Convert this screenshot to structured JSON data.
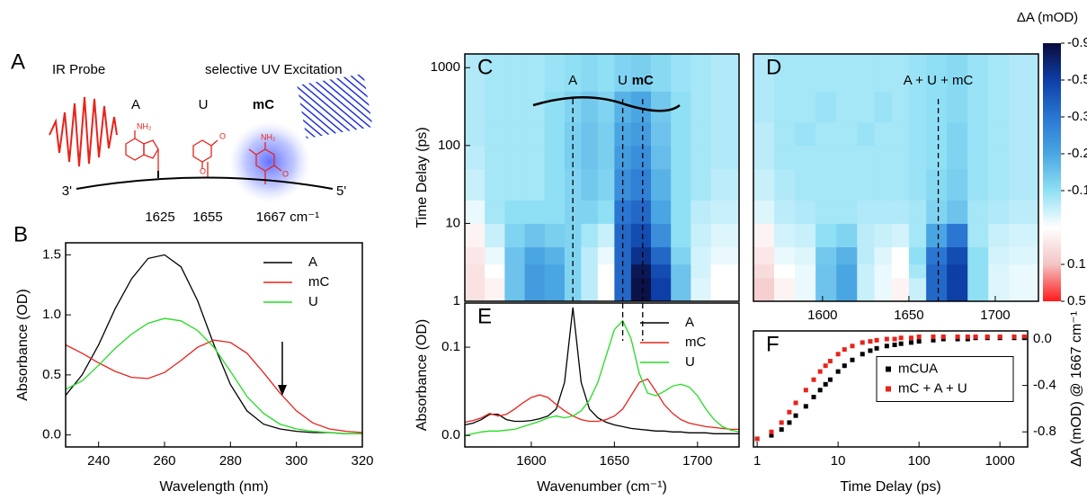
{
  "diagram": {
    "panel": "A",
    "probe": "IR Probe",
    "excitation": "selective UV Excitation",
    "bases": [
      "A",
      "U",
      "mC"
    ],
    "atoms": [
      "NH₂",
      "O",
      "O",
      "NH₂",
      "O"
    ],
    "ends": [
      "3'",
      "5'"
    ],
    "frequencies": [
      "1625",
      "1655",
      "1667 cm⁻¹"
    ]
  },
  "chart_data": [
    {
      "type": "line",
      "panel": "B",
      "xlabel": "Wavelength (nm)",
      "ylabel": "Absorbance (OD)",
      "xlim": [
        230,
        320
      ],
      "ylim": [
        -0.1,
        1.6
      ],
      "xticks": [
        240,
        260,
        280,
        300,
        320
      ],
      "yticks": [
        {
          "value": 0,
          "label": "0.0"
        },
        0.5,
        {
          "value": 1,
          "label": "1.0"
        },
        1.5
      ],
      "legend": "upper right",
      "x": [
        230,
        235,
        240,
        245,
        250,
        255,
        260,
        265,
        270,
        275,
        280,
        285,
        290,
        295,
        300,
        305,
        310,
        315,
        320
      ],
      "series": [
        {
          "name": "A",
          "color": "#000000",
          "values": [
            0.33,
            0.5,
            0.75,
            1.05,
            1.3,
            1.47,
            1.5,
            1.4,
            1.12,
            0.75,
            0.42,
            0.2,
            0.09,
            0.05,
            0.03,
            0.02,
            0.02,
            0.01,
            0.01
          ]
        },
        {
          "name": "mC",
          "color": "#e8231b",
          "values": [
            0.75,
            0.68,
            0.6,
            0.53,
            0.48,
            0.47,
            0.52,
            0.62,
            0.73,
            0.79,
            0.77,
            0.68,
            0.52,
            0.35,
            0.2,
            0.1,
            0.05,
            0.03,
            0.02
          ]
        },
        {
          "name": "U",
          "color": "#22dd22",
          "values": [
            0.38,
            0.45,
            0.58,
            0.72,
            0.84,
            0.93,
            0.97,
            0.95,
            0.87,
            0.73,
            0.53,
            0.32,
            0.18,
            0.09,
            0.05,
            0.03,
            0.02,
            0.01,
            0.01
          ]
        }
      ]
    },
    {
      "type": "heatmap",
      "panel": "C",
      "ylabel": "Time Delay (ps)",
      "xlim": [
        1560,
        1725
      ],
      "ylim": [
        1,
        1500
      ],
      "ylog": true,
      "yticks": [
        1,
        10,
        100,
        1000
      ],
      "xbins": [
        1560,
        1572,
        1584,
        1596,
        1608,
        1620,
        1630,
        1640,
        1650,
        1660,
        1672,
        1684,
        1696,
        1708,
        1725
      ],
      "ybins": [
        1,
        2,
        3,
        5,
        10,
        20,
        50,
        100,
        200,
        500,
        1500
      ],
      "vlines": [
        {
          "value": 1625,
          "label": "A"
        },
        {
          "value": 1655,
          "label": "U"
        },
        {
          "value": 1667,
          "label": "mC"
        }
      ],
      "colorscale": [
        {
          "value": -0.9,
          "color": "#0b0b3b"
        },
        {
          "value": -0.5,
          "color": "#0d3fa6"
        },
        {
          "value": -0.3,
          "color": "#2a76d2"
        },
        {
          "value": -0.2,
          "color": "#4aa6e2"
        },
        {
          "value": -0.1,
          "color": "#8fe0f5"
        },
        {
          "value": 0,
          "color": "#ffffff"
        },
        {
          "value": 0.1,
          "color": "#f4c4c4"
        },
        {
          "value": 0.5,
          "color": "#ff1a1a"
        }
      ],
      "z": [
        [
          0.05,
          0.02,
          -0.15,
          -0.22,
          -0.2,
          -0.12,
          -0.06,
          0.0,
          -0.35,
          -0.85,
          -0.5,
          -0.15,
          -0.03,
          0.0
        ],
        [
          0.05,
          0.0,
          -0.15,
          -0.22,
          -0.2,
          -0.12,
          -0.06,
          0.0,
          -0.35,
          -0.8,
          -0.45,
          -0.15,
          -0.04,
          0.0
        ],
        [
          0.04,
          -0.02,
          -0.15,
          -0.2,
          -0.18,
          -0.12,
          -0.06,
          -0.02,
          -0.35,
          -0.6,
          -0.35,
          -0.12,
          -0.04,
          -0.02
        ],
        [
          0.02,
          -0.05,
          -0.12,
          -0.15,
          -0.13,
          -0.12,
          -0.08,
          -0.05,
          -0.35,
          -0.45,
          -0.25,
          -0.1,
          -0.05,
          -0.03
        ],
        [
          -0.02,
          -0.08,
          -0.1,
          -0.1,
          -0.1,
          -0.12,
          -0.12,
          -0.1,
          -0.3,
          -0.35,
          -0.2,
          -0.1,
          -0.06,
          -0.05
        ],
        [
          -0.05,
          -0.08,
          -0.08,
          -0.08,
          -0.1,
          -0.12,
          -0.14,
          -0.12,
          -0.25,
          -0.28,
          -0.18,
          -0.1,
          -0.08,
          -0.06
        ],
        [
          -0.06,
          -0.08,
          -0.08,
          -0.08,
          -0.1,
          -0.13,
          -0.15,
          -0.13,
          -0.22,
          -0.25,
          -0.16,
          -0.1,
          -0.08,
          -0.07
        ],
        [
          -0.07,
          -0.08,
          -0.08,
          -0.08,
          -0.1,
          -0.13,
          -0.15,
          -0.13,
          -0.2,
          -0.22,
          -0.15,
          -0.1,
          -0.08,
          -0.07
        ],
        [
          -0.07,
          -0.08,
          -0.08,
          -0.08,
          -0.1,
          -0.12,
          -0.14,
          -0.12,
          -0.18,
          -0.2,
          -0.14,
          -0.1,
          -0.08,
          -0.07
        ],
        [
          -0.07,
          -0.08,
          -0.08,
          -0.08,
          -0.09,
          -0.1,
          -0.11,
          -0.1,
          -0.12,
          -0.13,
          -0.11,
          -0.09,
          -0.08,
          -0.07
        ]
      ]
    },
    {
      "type": "heatmap",
      "panel": "D",
      "xlim": [
        1560,
        1725
      ],
      "ylim": [
        1,
        1500
      ],
      "ylog": true,
      "xticks": [
        1600,
        1650,
        1700
      ],
      "xbins": [
        1560,
        1572,
        1584,
        1596,
        1608,
        1620,
        1630,
        1640,
        1650,
        1660,
        1672,
        1684,
        1696,
        1708,
        1725
      ],
      "ybins": [
        1,
        2,
        3,
        5,
        10,
        20,
        50,
        100,
        200,
        500,
        1500
      ],
      "vlines": [
        {
          "value": 1667,
          "label": "A + U + mC"
        }
      ],
      "colorscale": [
        {
          "value": -0.9,
          "color": "#0b0b3b"
        },
        {
          "value": -0.5,
          "color": "#0d3fa6"
        },
        {
          "value": -0.3,
          "color": "#2a76d2"
        },
        {
          "value": -0.2,
          "color": "#4aa6e2"
        },
        {
          "value": -0.1,
          "color": "#8fe0f5"
        },
        {
          "value": 0,
          "color": "#ffffff"
        },
        {
          "value": 0.1,
          "color": "#f4c4c4"
        },
        {
          "value": 0.5,
          "color": "#ff1a1a"
        }
      ],
      "colorbar": {
        "label": "ΔA (mOD)",
        "ticks": [
          -0.9,
          -0.5,
          -0.3,
          -0.2,
          -0.1,
          0.1,
          0.5
        ]
      },
      "z": [
        [
          0.08,
          0.02,
          -0.02,
          -0.15,
          -0.2,
          -0.05,
          -0.02,
          0.02,
          -0.05,
          -0.35,
          -0.5,
          -0.1,
          -0.03,
          -0.02
        ],
        [
          0.06,
          0.0,
          -0.02,
          -0.15,
          -0.2,
          -0.05,
          -0.02,
          0.0,
          -0.08,
          -0.35,
          -0.5,
          -0.1,
          -0.03,
          -0.02
        ],
        [
          0.04,
          -0.02,
          -0.03,
          -0.14,
          -0.18,
          -0.06,
          -0.03,
          0.0,
          -0.1,
          -0.3,
          -0.45,
          -0.1,
          -0.04,
          -0.03
        ],
        [
          0.02,
          -0.04,
          -0.05,
          -0.1,
          -0.12,
          -0.06,
          -0.05,
          -0.04,
          -0.08,
          -0.2,
          -0.3,
          -0.08,
          -0.05,
          -0.04
        ],
        [
          -0.03,
          -0.06,
          -0.07,
          -0.08,
          -0.08,
          -0.07,
          -0.07,
          -0.07,
          -0.08,
          -0.12,
          -0.15,
          -0.08,
          -0.07,
          -0.06
        ],
        [
          -0.05,
          -0.07,
          -0.08,
          -0.08,
          -0.08,
          -0.08,
          -0.08,
          -0.08,
          -0.09,
          -0.11,
          -0.13,
          -0.09,
          -0.08,
          -0.07
        ],
        [
          -0.06,
          -0.08,
          -0.08,
          -0.08,
          -0.08,
          -0.08,
          -0.08,
          -0.08,
          -0.09,
          -0.1,
          -0.12,
          -0.09,
          -0.08,
          -0.07
        ],
        [
          -0.06,
          -0.08,
          -0.09,
          -0.08,
          -0.08,
          -0.09,
          -0.08,
          -0.08,
          -0.09,
          -0.1,
          -0.12,
          -0.09,
          -0.08,
          -0.07
        ],
        [
          -0.07,
          -0.08,
          -0.08,
          -0.09,
          -0.08,
          -0.08,
          -0.09,
          -0.08,
          -0.09,
          -0.1,
          -0.11,
          -0.09,
          -0.08,
          -0.07
        ],
        [
          -0.07,
          -0.08,
          -0.08,
          -0.08,
          -0.08,
          -0.08,
          -0.08,
          -0.08,
          -0.09,
          -0.1,
          -0.11,
          -0.09,
          -0.08,
          -0.07
        ]
      ]
    },
    {
      "type": "line",
      "panel": "E",
      "xlabel": "Wavenumber (cm⁻¹)",
      "ylabel": "Absorbance (OD)",
      "xlim": [
        1560,
        1725
      ],
      "ylim": [
        -0.013,
        0.15
      ],
      "xticks": [
        1600,
        1650,
        1700
      ],
      "yticks": [
        {
          "value": 0,
          "label": "0.0"
        },
        0.1
      ],
      "legend": "upper right",
      "vlines": [
        {
          "value": 1655
        },
        {
          "value": 1667
        }
      ],
      "x": [
        1560,
        1565,
        1570,
        1575,
        1580,
        1585,
        1590,
        1595,
        1600,
        1605,
        1610,
        1615,
        1620,
        1625,
        1630,
        1635,
        1640,
        1645,
        1650,
        1655,
        1660,
        1665,
        1670,
        1675,
        1680,
        1685,
        1690,
        1695,
        1700,
        1705,
        1710,
        1715,
        1720,
        1725
      ],
      "series": [
        {
          "name": "A",
          "color": "#000000",
          "values": [
            0.012,
            0.014,
            0.018,
            0.024,
            0.024,
            0.018,
            0.016,
            0.016,
            0.017,
            0.019,
            0.022,
            0.03,
            0.06,
            0.145,
            0.06,
            0.03,
            0.02,
            0.015,
            0.012,
            0.01,
            0.008,
            0.007,
            0.006,
            0.005,
            0.005,
            0.004,
            0.004,
            0.003,
            0.003,
            0.003,
            0.002,
            0.002,
            0.002,
            0.002
          ]
        },
        {
          "name": "mC",
          "color": "#e8231b",
          "values": [
            0.015,
            0.017,
            0.02,
            0.025,
            0.022,
            0.024,
            0.03,
            0.037,
            0.043,
            0.046,
            0.043,
            0.035,
            0.028,
            0.022,
            0.018,
            0.016,
            0.016,
            0.018,
            0.022,
            0.03,
            0.045,
            0.06,
            0.064,
            0.05,
            0.035,
            0.025,
            0.018,
            0.014,
            0.012,
            0.01,
            0.009,
            0.008,
            0.007,
            0.007
          ]
        },
        {
          "name": "U",
          "color": "#22dd22",
          "values": [
            0.0,
            0.002,
            0.004,
            0.005,
            0.005,
            0.006,
            0.007,
            0.01,
            0.013,
            0.016,
            0.02,
            0.022,
            0.02,
            0.022,
            0.028,
            0.04,
            0.06,
            0.09,
            0.12,
            0.13,
            0.11,
            0.07,
            0.048,
            0.045,
            0.05,
            0.056,
            0.058,
            0.055,
            0.045,
            0.03,
            0.018,
            0.01,
            0.006,
            0.004
          ]
        }
      ]
    },
    {
      "type": "scatter",
      "panel": "F",
      "xlabel": "Time Delay (ps)",
      "ylabel": "ΔA (mOD) @ 1667 cm⁻¹",
      "yaxis": "right",
      "xlog": true,
      "xlim": [
        0.9,
        2200
      ],
      "ylim": [
        -0.93,
        0.07
      ],
      "xticks": [
        1,
        10,
        100,
        1000
      ],
      "yticks": [
        -0.8,
        -0.4,
        {
          "value": 0,
          "label": "0.0"
        }
      ],
      "legend": "center right",
      "x": [
        1,
        1.5,
        2,
        2.5,
        3,
        4,
        5,
        6,
        7,
        8,
        10,
        12,
        15,
        20,
        25,
        30,
        40,
        50,
        60,
        80,
        100,
        150,
        200,
        300,
        400,
        500,
        700,
        1000,
        1500,
        2000
      ],
      "series": [
        {
          "name": "mCUA",
          "color": "#000000",
          "values": [
            -0.86,
            -0.83,
            -0.78,
            -0.72,
            -0.66,
            -0.58,
            -0.5,
            -0.44,
            -0.39,
            -0.35,
            -0.28,
            -0.23,
            -0.18,
            -0.13,
            -0.1,
            -0.08,
            -0.06,
            -0.05,
            -0.04,
            -0.03,
            -0.02,
            -0.01,
            0.0,
            0.0,
            0.0,
            0.01,
            0.01,
            0.01,
            0.01,
            0.01
          ]
        },
        {
          "name": "mC + A + U",
          "color": "#e8231b",
          "values": [
            -0.86,
            -0.8,
            -0.72,
            -0.63,
            -0.55,
            -0.44,
            -0.35,
            -0.28,
            -0.23,
            -0.19,
            -0.13,
            -0.09,
            -0.06,
            -0.03,
            -0.02,
            -0.01,
            0.0,
            0.0,
            0.01,
            0.01,
            0.02,
            0.02,
            0.02,
            0.02,
            0.02,
            0.02,
            0.02,
            0.02,
            0.02,
            0.02
          ]
        }
      ]
    }
  ]
}
